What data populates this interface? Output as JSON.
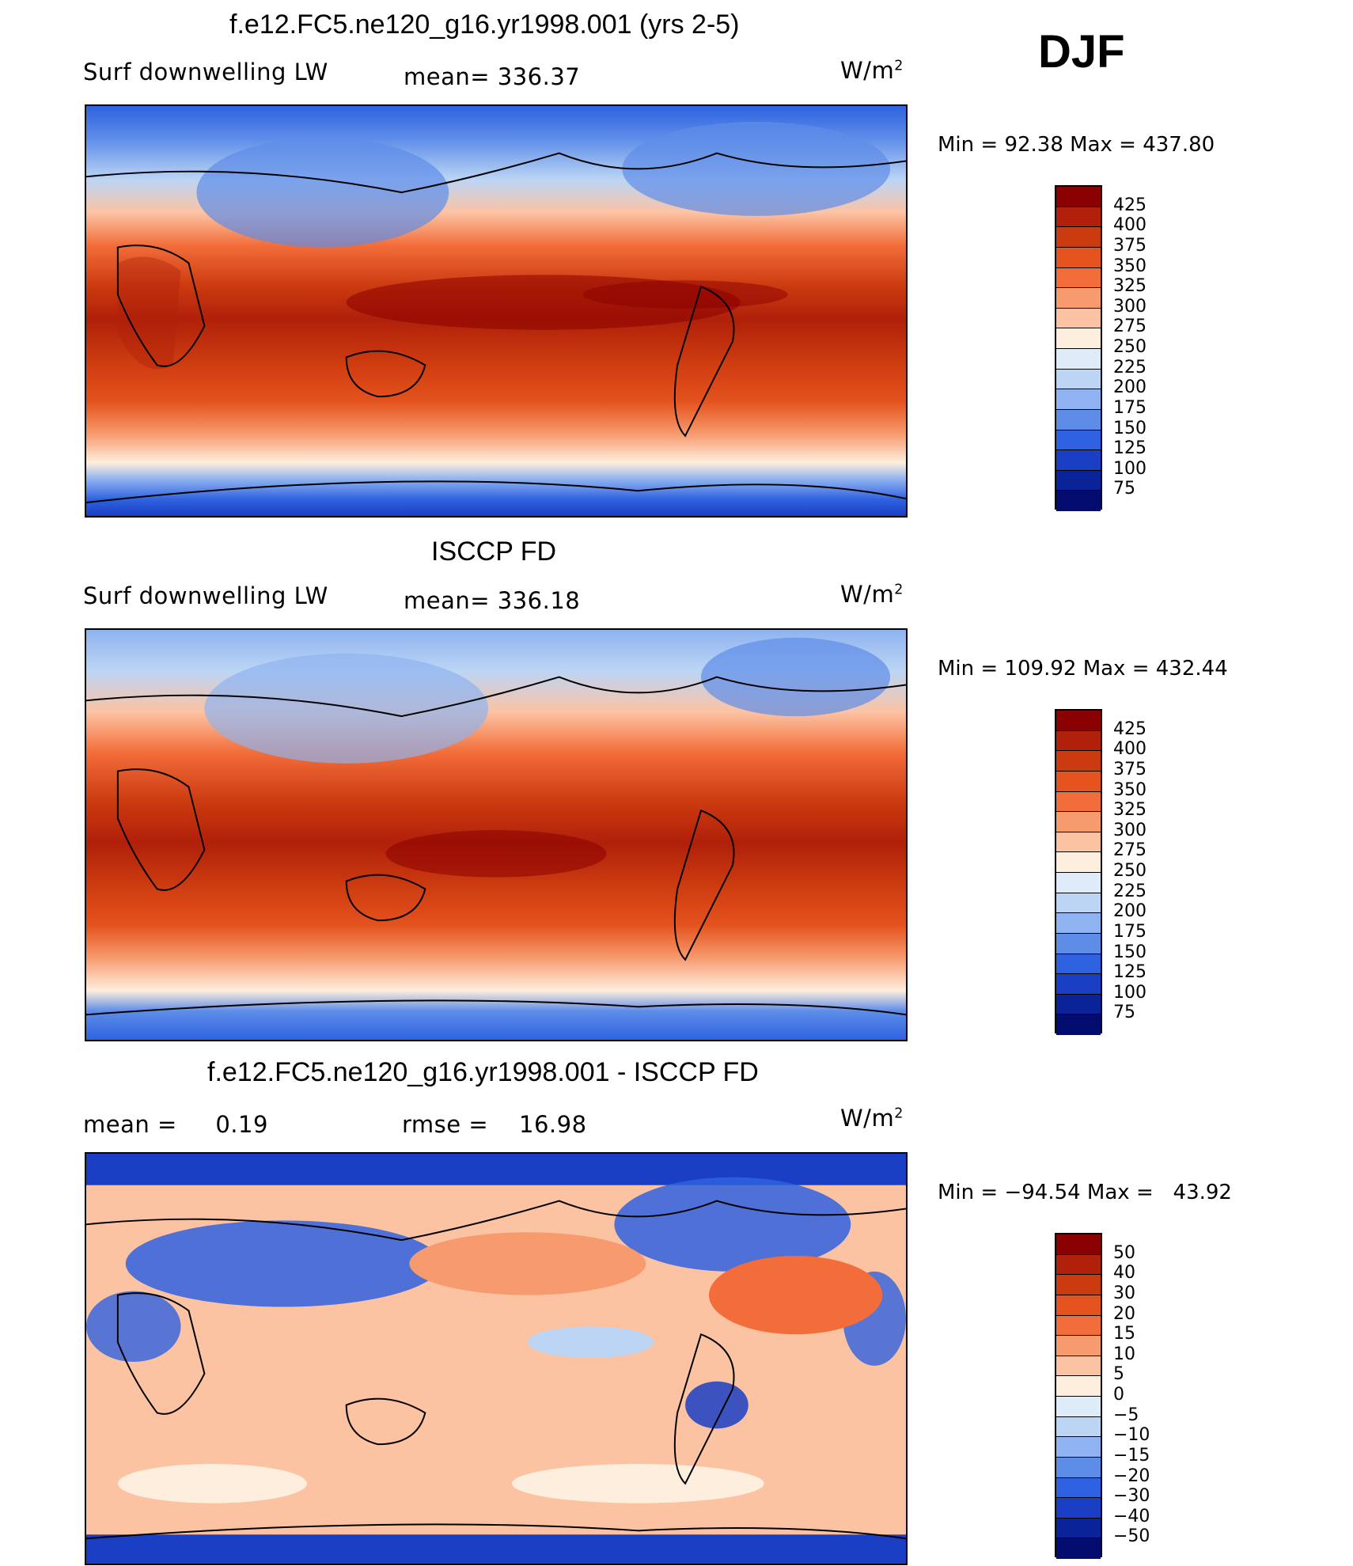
{
  "season": "DJF",
  "panels": [
    {
      "title": "f.e12.FC5.ne120_g16.yr1998.001 (yrs 2-5)",
      "left_label": "Surf downwelling LW",
      "center_label": "mean= 336.37",
      "units": "W/m",
      "units_sup": "2",
      "minmax": "Min =   92.38 Max = 437.80"
    },
    {
      "title": "ISCCP FD",
      "left_label": "Surf downwelling LW",
      "center_label": "mean= 336.18",
      "units": "W/m",
      "units_sup": "2",
      "minmax": "Min = 109.92 Max = 432.44"
    },
    {
      "title": "f.e12.FC5.ne120_g16.yr1998.001 - ISCCP FD",
      "left_label": "mean =     0.19",
      "center_label": "rmse =    16.98",
      "units": "W/m",
      "units_sup": "2",
      "minmax": "Min = −94.54 Max =   43.92"
    }
  ],
  "colorbars": {
    "absolute": {
      "labels": [
        "425",
        "400",
        "375",
        "350",
        "325",
        "300",
        "275",
        "250",
        "225",
        "200",
        "175",
        "150",
        "125",
        "100",
        "75"
      ],
      "colors": [
        "#8b0000",
        "#b0200a",
        "#cc3a10",
        "#e4521d",
        "#f26d3a",
        "#f79a6e",
        "#fcc3a3",
        "#feeedd",
        "#deebf9",
        "#bcd5f5",
        "#8fb3f0",
        "#5e8de8",
        "#2f62e0",
        "#1a3fc4",
        "#0b2398",
        "#020b6e"
      ]
    },
    "difference": {
      "labels": [
        "50",
        "40",
        "30",
        "20",
        "15",
        "10",
        "5",
        "0",
        "−5",
        "−10",
        "−15",
        "−20",
        "−30",
        "−40",
        "−50"
      ],
      "colors": [
        "#8b0000",
        "#b0200a",
        "#cc3a10",
        "#e4521d",
        "#f26d3a",
        "#f79a6e",
        "#fcc3a3",
        "#feeedd",
        "#deebf9",
        "#bcd5f5",
        "#8fb3f0",
        "#5e8de8",
        "#2f62e0",
        "#1a3fc4",
        "#0b2398",
        "#020b6e"
      ]
    }
  }
}
